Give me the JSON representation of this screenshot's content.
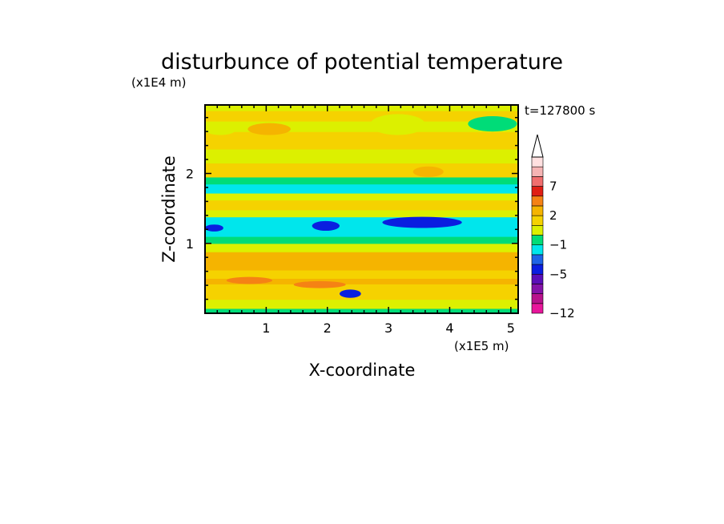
{
  "chart_data": {
    "type": "heatmap",
    "title": "disturbunce of potential temperature",
    "xlabel": "X-coordinate",
    "ylabel": "Z-coordinate",
    "x_unit": "(x1E5 m)",
    "y_unit": "(x1E4 m)",
    "time_label": "t=127800 s",
    "xlim": [
      0,
      5.12
    ],
    "ylim": [
      0,
      2.98
    ],
    "x_ticks": [
      1,
      2,
      3,
      4,
      5
    ],
    "y_ticks": [
      1,
      2
    ],
    "colorbar": {
      "levels": [
        -12,
        -10,
        -8,
        -6,
        -5,
        -3,
        -2,
        -1,
        0,
        1,
        2,
        3,
        5,
        7,
        9,
        11
      ],
      "labels": [
        -12,
        -5,
        -1,
        2,
        7
      ],
      "colors": [
        "#e8169b",
        "#b8128c",
        "#8412a8",
        "#5a0eb8",
        "#0a1ee0",
        "#1e64e6",
        "#00e6ec",
        "#00dc78",
        "#dcf000",
        "#f5d200",
        "#f5b400",
        "#f58214",
        "#e01e14",
        "#f06e6e",
        "#f5b4b4",
        "#ffe0e0"
      ],
      "extend": "max"
    },
    "bands": [
      {
        "z0": 0.0,
        "z1": 0.07,
        "value": -0.5
      },
      {
        "z0": 0.07,
        "z1": 0.2,
        "value": 0.5
      },
      {
        "z0": 0.2,
        "z1": 0.42,
        "value": 1.5
      },
      {
        "z0": 0.42,
        "z1": 0.5,
        "value": 2.2
      },
      {
        "z0": 0.5,
        "z1": 0.62,
        "value": 1.5
      },
      {
        "z0": 0.62,
        "z1": 0.88,
        "value": 2.2
      },
      {
        "z0": 0.88,
        "z1": 1.0,
        "value": 0.5
      },
      {
        "z0": 1.0,
        "z1": 1.1,
        "value": -0.5
      },
      {
        "z0": 1.1,
        "z1": 1.38,
        "value": -1.5
      },
      {
        "z0": 1.38,
        "z1": 1.48,
        "value": 0.5
      },
      {
        "z0": 1.48,
        "z1": 1.62,
        "value": 1.5
      },
      {
        "z0": 1.62,
        "z1": 1.72,
        "value": 0.5
      },
      {
        "z0": 1.72,
        "z1": 1.85,
        "value": -1.5
      },
      {
        "z0": 1.85,
        "z1": 1.95,
        "value": -0.5
      },
      {
        "z0": 1.95,
        "z1": 2.15,
        "value": 1.5
      },
      {
        "z0": 2.15,
        "z1": 2.35,
        "value": 0.5
      },
      {
        "z0": 2.35,
        "z1": 2.6,
        "value": 1.5
      },
      {
        "z0": 2.6,
        "z1": 2.75,
        "value": 0.5
      },
      {
        "z0": 2.75,
        "z1": 2.9,
        "value": 1.5
      },
      {
        "z0": 2.9,
        "z1": 2.98,
        "value": 0.5
      }
    ],
    "patches": [
      {
        "x0": 0.0,
        "x1": 0.3,
        "z0": 1.17,
        "z1": 1.27,
        "value": -4
      },
      {
        "x0": 1.75,
        "x1": 2.2,
        "z0": 1.18,
        "z1": 1.32,
        "value": -4
      },
      {
        "x0": 2.9,
        "x1": 4.2,
        "z0": 1.22,
        "z1": 1.38,
        "value": -4
      },
      {
        "x0": 0.35,
        "x1": 1.1,
        "z0": 0.42,
        "z1": 0.52,
        "value": 4
      },
      {
        "x0": 1.45,
        "x1": 2.3,
        "z0": 0.36,
        "z1": 0.46,
        "value": 4
      },
      {
        "x0": 0.7,
        "x1": 1.4,
        "z0": 2.55,
        "z1": 2.72,
        "value": 2.2
      },
      {
        "x0": 3.4,
        "x1": 3.9,
        "z0": 1.95,
        "z1": 2.1,
        "value": 2.2
      },
      {
        "x0": 2.2,
        "x1": 2.55,
        "z0": 0.22,
        "z1": 0.34,
        "value": -4
      },
      {
        "x0": 2.7,
        "x1": 3.6,
        "z0": 2.55,
        "z1": 2.85,
        "value": 0.5
      },
      {
        "x0": 4.3,
        "x1": 5.1,
        "z0": 2.6,
        "z1": 2.82,
        "value": -0.5
      },
      {
        "x0": 0.0,
        "x1": 0.5,
        "z0": 2.55,
        "z1": 2.7,
        "value": 0.5
      }
    ]
  }
}
